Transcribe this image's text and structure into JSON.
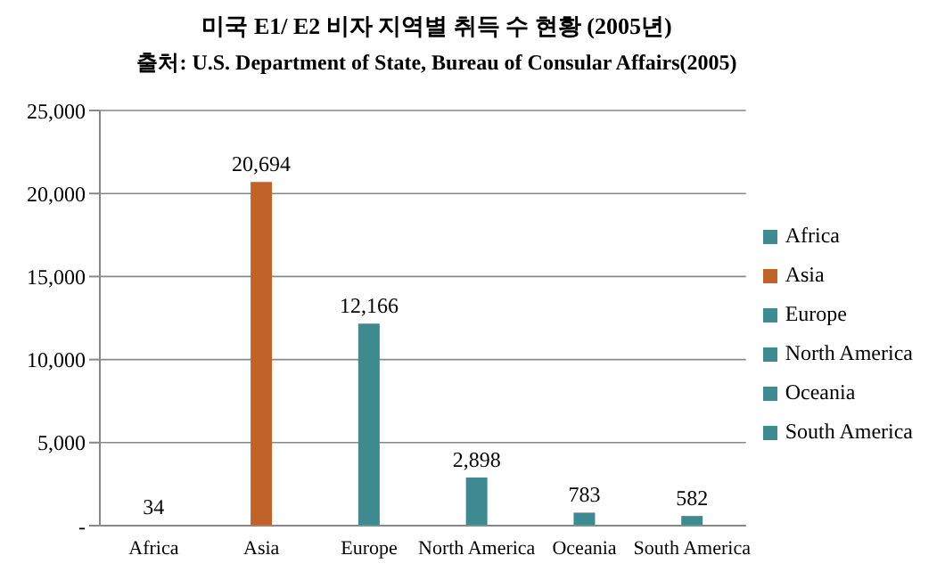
{
  "chart_data": {
    "type": "bar",
    "title": "미국 E1/ E2 비자 지역별 취득 수 현황 (2005년)",
    "subtitle": "출처: U.S. Department of State, Bureau of Consular Affairs(2005)",
    "categories": [
      "Africa",
      "Asia",
      "Europe",
      "North America",
      "Oceania",
      "South America"
    ],
    "stacked": true,
    "series": [
      {
        "name": "Africa",
        "color": "#3e8a91",
        "values": [
          34,
          null,
          null,
          null,
          null,
          null
        ],
        "value_labels": [
          "34",
          null,
          null,
          null,
          null,
          null
        ]
      },
      {
        "name": "Asia",
        "color": "#c0622a",
        "values": [
          null,
          20694,
          null,
          null,
          null,
          null
        ],
        "value_labels": [
          null,
          "20,694",
          null,
          null,
          null,
          null
        ]
      },
      {
        "name": "Europe",
        "color": "#3e8a91",
        "values": [
          null,
          null,
          12166,
          null,
          null,
          null
        ],
        "value_labels": [
          null,
          null,
          "12,166",
          null,
          null,
          null
        ]
      },
      {
        "name": "North America",
        "color": "#3e8a91",
        "values": [
          null,
          null,
          null,
          2898,
          null,
          null
        ],
        "value_labels": [
          null,
          null,
          null,
          "2,898",
          null,
          null
        ]
      },
      {
        "name": "Oceania",
        "color": "#3e8a91",
        "values": [
          null,
          null,
          null,
          null,
          783,
          null
        ],
        "value_labels": [
          null,
          null,
          null,
          null,
          "783",
          null
        ]
      },
      {
        "name": "South America",
        "color": "#3e8a91",
        "values": [
          null,
          null,
          null,
          null,
          null,
          582
        ],
        "value_labels": [
          null,
          null,
          null,
          null,
          null,
          "582"
        ]
      }
    ],
    "ylim": [
      0,
      25000
    ],
    "yticks": [
      {
        "value": 0,
        "label": "-"
      },
      {
        "value": 5000,
        "label": "5,000"
      },
      {
        "value": 10000,
        "label": "10,000"
      },
      {
        "value": 15000,
        "label": "15,000"
      },
      {
        "value": 20000,
        "label": "20,000"
      },
      {
        "value": 25000,
        "label": "25,000"
      }
    ],
    "grid": "y",
    "legend": "right"
  }
}
